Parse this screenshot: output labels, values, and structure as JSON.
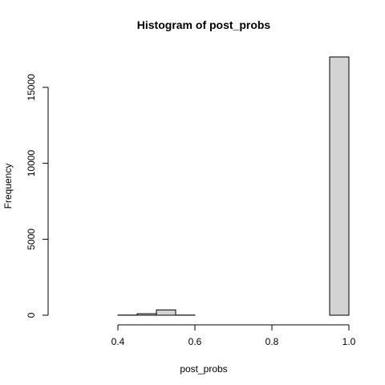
{
  "chart_data": {
    "type": "bar",
    "title": "Histogram of post_probs",
    "xlabel": "post_probs",
    "ylabel": "Frequency",
    "xlim": [
      0.25,
      1.0
    ],
    "ylim": [
      0,
      17000
    ],
    "x_ticks": [
      {
        "value": 0.4,
        "label": "0.4"
      },
      {
        "value": 0.6,
        "label": "0.6"
      },
      {
        "value": 0.8,
        "label": "0.8"
      },
      {
        "value": 1.0,
        "label": "1.0"
      }
    ],
    "y_ticks": [
      {
        "value": 0,
        "label": "0"
      },
      {
        "value": 5000,
        "label": "5000"
      },
      {
        "value": 10000,
        "label": "10000"
      },
      {
        "value": 15000,
        "label": "15000"
      }
    ],
    "bins": [
      {
        "start": 0.25,
        "end": 0.3,
        "count": 0
      },
      {
        "start": 0.3,
        "end": 0.35,
        "count": 0
      },
      {
        "start": 0.35,
        "end": 0.4,
        "count": 0
      },
      {
        "start": 0.4,
        "end": 0.45,
        "count": 10
      },
      {
        "start": 0.45,
        "end": 0.5,
        "count": 100
      },
      {
        "start": 0.5,
        "end": 0.55,
        "count": 350
      },
      {
        "start": 0.55,
        "end": 0.6,
        "count": 10
      },
      {
        "start": 0.6,
        "end": 0.65,
        "count": 0
      },
      {
        "start": 0.65,
        "end": 0.7,
        "count": 0
      },
      {
        "start": 0.7,
        "end": 0.75,
        "count": 0
      },
      {
        "start": 0.75,
        "end": 0.8,
        "count": 0
      },
      {
        "start": 0.8,
        "end": 0.85,
        "count": 0
      },
      {
        "start": 0.85,
        "end": 0.9,
        "count": 0
      },
      {
        "start": 0.9,
        "end": 0.95,
        "count": 0
      },
      {
        "start": 0.95,
        "end": 1.0,
        "count": 17000
      }
    ],
    "bar_fill": "#d3d3d3",
    "bar_stroke": "#000000",
    "grid": false,
    "legend": "none"
  }
}
